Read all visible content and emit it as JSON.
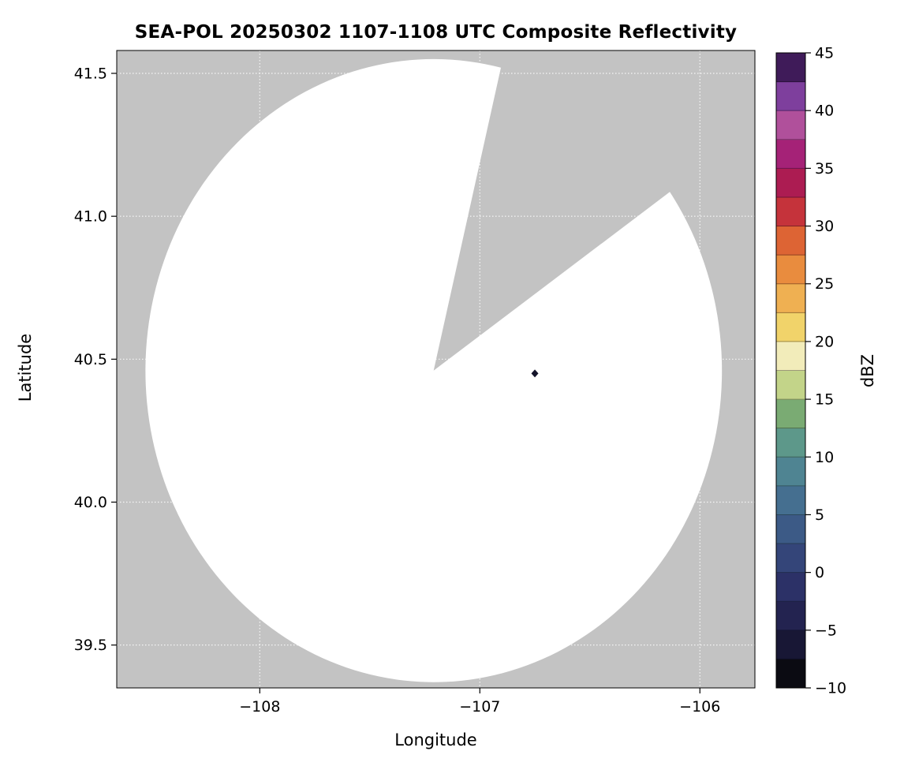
{
  "chart_data": {
    "type": "heatmap",
    "description": "Radar PPI composite reflectivity map: white disc is the radar coverage area (no significant echoes), gray is no-data region, a wedge-shaped sector of the scan is missing toward the north-northeast, one small dark echo pixel present.",
    "title": "SEA-POL 20250302 1107-1108 UTC Composite Reflectivity",
    "xlabel": "Longitude",
    "ylabel": "Latitude",
    "xlim": [
      -108.65,
      -105.75
    ],
    "ylim": [
      39.35,
      41.58
    ],
    "xticks": [
      -108,
      -107,
      -106
    ],
    "yticks": [
      39.5,
      40.0,
      40.5,
      41.0,
      41.5
    ],
    "grid": true,
    "no_data_color": "#c3c3c3",
    "coverage_color": "#ffffff",
    "radar_coverage": {
      "center_lon": -107.21,
      "center_lat": 40.46,
      "radius_lon_deg": 1.31,
      "radius_lat_deg": 1.09,
      "missing_sector_azimuths_deg": [
        13.5,
        55
      ]
    },
    "echoes": [
      {
        "lon": -106.75,
        "lat": 40.45,
        "color": "#14142a"
      }
    ],
    "colorbar": {
      "label": "dBZ",
      "min": -10,
      "max": 45,
      "ticks": [
        45,
        40,
        35,
        30,
        25,
        20,
        15,
        10,
        5,
        0,
        -5,
        -10
      ],
      "segment_size_dbz": 2.5,
      "segment_colors_bottom_to_top": [
        "#0b0b12",
        "#181735",
        "#232350",
        "#2c3167",
        "#344579",
        "#3c5a86",
        "#456f90",
        "#4f8492",
        "#5d988a",
        "#7aab73",
        "#c3d489",
        "#f2ecba",
        "#f1d36a",
        "#efb052",
        "#e98c3e",
        "#dd6434",
        "#c5333b",
        "#ac1c52",
        "#a52277",
        "#b0509b",
        "#7e3f9d",
        "#3f1b59"
      ]
    }
  }
}
